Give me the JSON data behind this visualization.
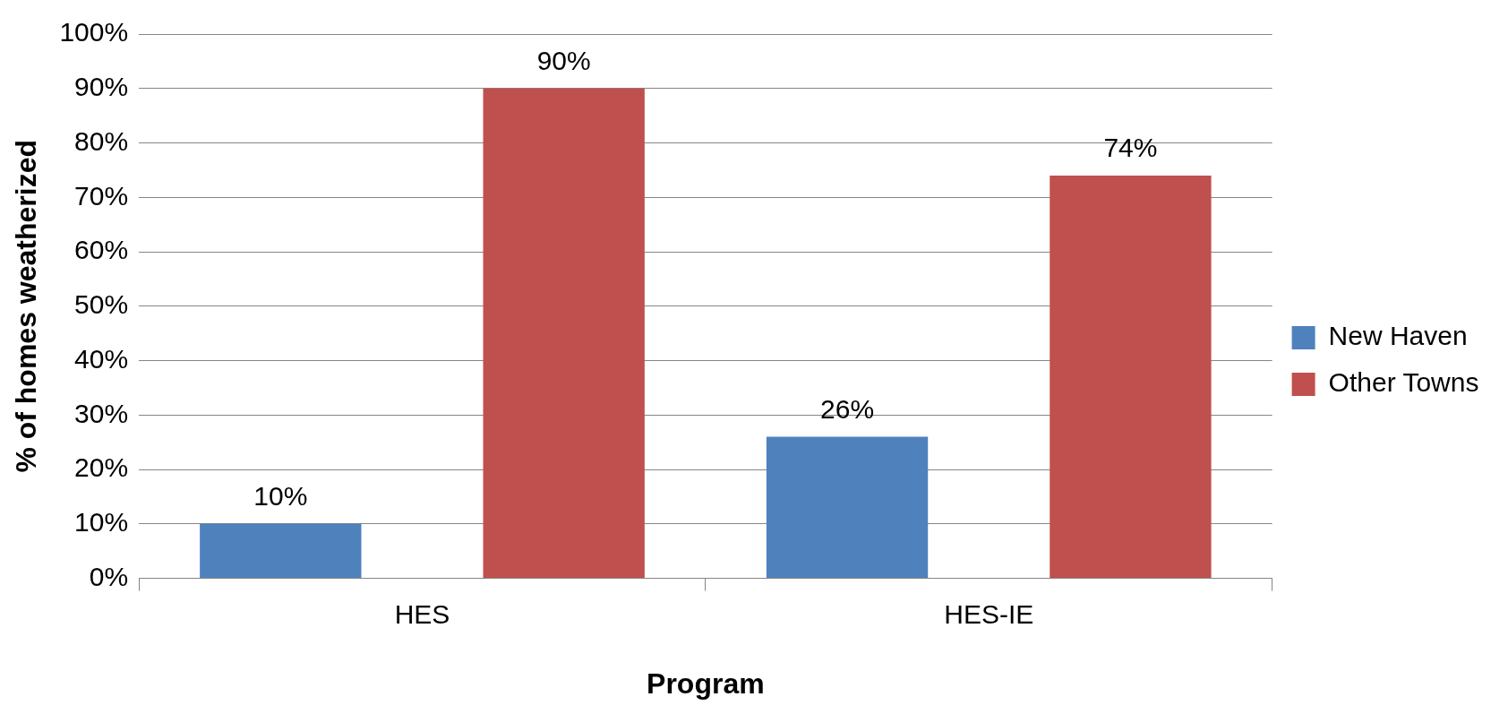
{
  "chart_data": {
    "type": "bar",
    "xlabel": "Program",
    "ylabel": "% of homes weatherized",
    "categories": [
      "HES",
      "HES-IE"
    ],
    "series": [
      {
        "name": "New Haven",
        "color": "#4f81bd",
        "values": [
          10,
          26
        ],
        "value_labels": [
          "10%",
          "26%"
        ]
      },
      {
        "name": "Other Towns",
        "color": "#c0504d",
        "values": [
          90,
          74
        ],
        "value_labels": [
          "90%",
          "74%"
        ]
      }
    ],
    "ylim": [
      0,
      100
    ],
    "yticks": [
      {
        "value": 0,
        "label": "0%"
      },
      {
        "value": 10,
        "label": "10%"
      },
      {
        "value": 20,
        "label": "20%"
      },
      {
        "value": 30,
        "label": "30%"
      },
      {
        "value": 40,
        "label": "40%"
      },
      {
        "value": 50,
        "label": "50%"
      },
      {
        "value": 60,
        "label": "60%"
      },
      {
        "value": 70,
        "label": "70%"
      },
      {
        "value": 80,
        "label": "80%"
      },
      {
        "value": 90,
        "label": "90%"
      },
      {
        "value": 100,
        "label": "100%"
      }
    ],
    "grid": "y",
    "legend": "right"
  }
}
